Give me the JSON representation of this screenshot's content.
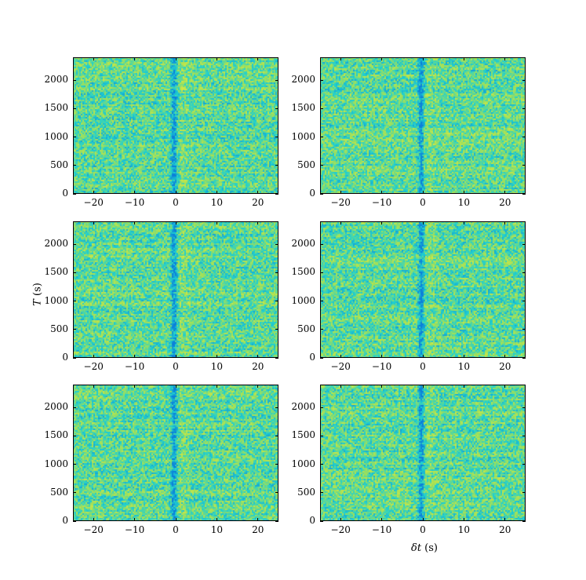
{
  "chart_data": [
    {
      "type": "heatmap",
      "panel": 1,
      "xlim": [
        -25,
        25
      ],
      "ylim": [
        0,
        2400
      ],
      "xticks": [
        "−20",
        "−10",
        "0",
        "10",
        "20"
      ],
      "yticks": [
        "0",
        "500",
        "1000",
        "1500",
        "2000"
      ],
      "dip_at_x": 0
    },
    {
      "type": "heatmap",
      "panel": 2,
      "xlim": [
        -25,
        25
      ],
      "ylim": [
        0,
        2400
      ],
      "xticks": [
        "−20",
        "−10",
        "0",
        "10",
        "20"
      ],
      "yticks": [
        "0",
        "500",
        "1000",
        "1500",
        "2000"
      ],
      "dip_at_x": 0
    },
    {
      "type": "heatmap",
      "panel": 3,
      "xlim": [
        -25,
        25
      ],
      "ylim": [
        0,
        2400
      ],
      "xticks": [
        "−20",
        "−10",
        "0",
        "10",
        "20"
      ],
      "yticks": [
        "0",
        "500",
        "1000",
        "1500",
        "2000"
      ],
      "dip_at_x": 0
    },
    {
      "type": "heatmap",
      "panel": 4,
      "xlim": [
        -25,
        25
      ],
      "ylim": [
        0,
        2400
      ],
      "xticks": [
        "−20",
        "−10",
        "0",
        "10",
        "20"
      ],
      "yticks": [
        "0",
        "500",
        "1000",
        "1500",
        "2000"
      ],
      "dip_at_x": 0
    },
    {
      "type": "heatmap",
      "panel": 5,
      "xlim": [
        -25,
        25
      ],
      "ylim": [
        0,
        2400
      ],
      "xticks": [
        "−20",
        "−10",
        "0",
        "10",
        "20"
      ],
      "yticks": [
        "0",
        "500",
        "1000",
        "1500",
        "2000"
      ],
      "dip_at_x": 0
    },
    {
      "type": "heatmap",
      "panel": 6,
      "xlim": [
        -25,
        25
      ],
      "ylim": [
        0,
        2400
      ],
      "xticks": [
        "−20",
        "−10",
        "0",
        "10",
        "20"
      ],
      "yticks": [
        "0",
        "500",
        "1000",
        "1500",
        "2000"
      ],
      "dip_at_x": 0
    }
  ],
  "labels": {
    "ylabel_var": "T",
    "ylabel_unit": " (s)",
    "xlabel_var": "δt",
    "xlabel_unit": " (s)"
  },
  "colormap": [
    "#0b7fd9",
    "#1fd0d0",
    "#9fe05a",
    "#e8ea3a"
  ]
}
